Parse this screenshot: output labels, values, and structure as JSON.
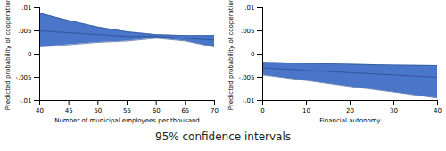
{
  "chart_data": [
    {
      "type": "line",
      "x": [
        40,
        45,
        50,
        55,
        60,
        65,
        70
      ],
      "values": [
        0.005,
        0.0046,
        0.0042,
        0.0038,
        0.0038,
        0.0034,
        0.003
      ],
      "lower": [
        0.0015,
        0.002,
        0.0025,
        0.0028,
        0.0034,
        0.0028,
        0.0015
      ],
      "upper": [
        0.0088,
        0.0072,
        0.0058,
        0.0048,
        0.0042,
        0.004,
        0.004
      ],
      "color": "#3f6fc6",
      "xlabel": "Number of municipal employees per thousand",
      "ylabel": "Predicted probability of cooperation",
      "xlim": [
        40,
        70
      ],
      "xticks": [
        40,
        45,
        50,
        55,
        60,
        65,
        70
      ],
      "ylim": [
        -0.01,
        0.01
      ],
      "yticks": [
        {
          "value": -0.01,
          "label": "-.01"
        },
        {
          "value": -0.005,
          "label": "-.005"
        },
        {
          "value": 0,
          "label": "0"
        },
        {
          "value": 0.005,
          "label": ".005"
        },
        {
          "value": 0.01,
          "label": ".01"
        }
      ],
      "grid": false
    },
    {
      "type": "line",
      "x": [
        0,
        10,
        20,
        30,
        40
      ],
      "values": [
        -0.003,
        -0.0035,
        -0.004,
        -0.0045,
        -0.005
      ],
      "lower": [
        -0.0045,
        -0.0057,
        -0.007,
        -0.0082,
        -0.0095
      ],
      "upper": [
        -0.0018,
        -0.002,
        -0.0022,
        -0.0024,
        -0.0025
      ],
      "color": "#3f6fc6",
      "xlabel": "Financial autonomy",
      "ylabel": "Predicted probability of cooperation",
      "xlim": [
        0,
        40
      ],
      "xticks": [
        0,
        10,
        20,
        30,
        40
      ],
      "ylim": [
        -0.01,
        0.01
      ],
      "yticks": [
        {
          "value": -0.01,
          "label": "-.01"
        },
        {
          "value": -0.005,
          "label": "-.005"
        },
        {
          "value": 0,
          "label": "0"
        },
        {
          "value": 0.005,
          "label": ".005"
        },
        {
          "value": 0.01,
          "label": ".01"
        }
      ],
      "grid": false
    }
  ],
  "caption": "95% confidence intervals"
}
